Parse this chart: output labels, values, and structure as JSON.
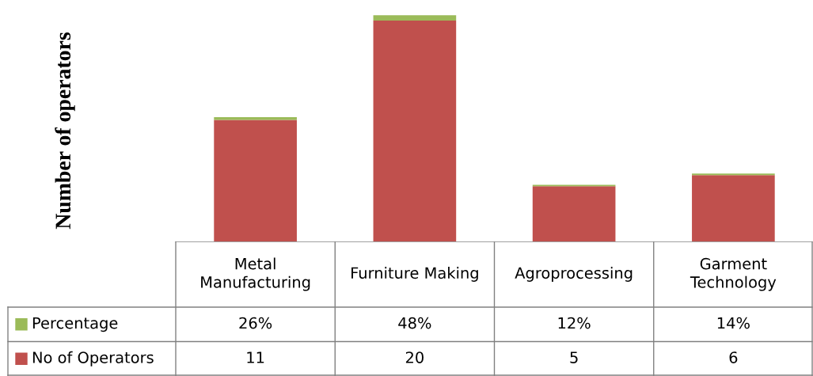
{
  "chart_data": {
    "type": "bar",
    "stacked": true,
    "ylabel": "Number of operators",
    "categories": [
      "Metal Manufacturing",
      "Furniture Making",
      "Agroprocessing",
      "Garment Technology"
    ],
    "series": [
      {
        "name": "No of Operators",
        "color": "#c0504d",
        "values": [
          11,
          20,
          5,
          6
        ],
        "value_labels": [
          "11",
          "20",
          "5",
          "6"
        ]
      },
      {
        "name": "Percentage",
        "color": "#9bbb59",
        "values": [
          0.26,
          0.48,
          0.12,
          0.14
        ],
        "value_labels": [
          "26%",
          "48%",
          "12%",
          "14%"
        ]
      }
    ],
    "legend": "bottom"
  }
}
